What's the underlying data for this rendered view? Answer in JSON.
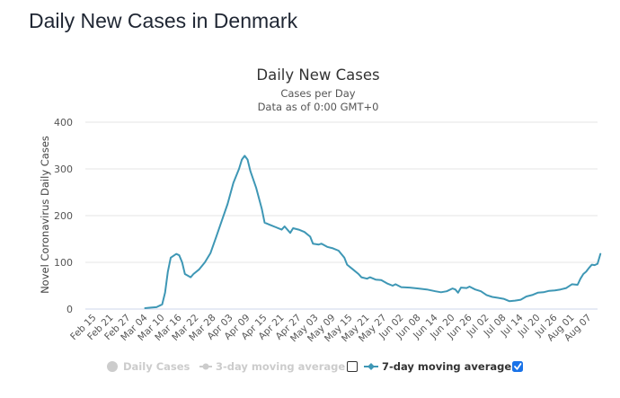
{
  "page": {
    "title": "Daily New Cases in Denmark"
  },
  "chart_data": {
    "type": "line",
    "title": "Daily New Cases",
    "subtitle": "Cases per Day",
    "subtitle2": "Data as of 0:00 GMT+0",
    "ylabel": "Novel Coronavirus Daily Cases",
    "xlabel": "",
    "ylim": [
      0,
      400
    ],
    "yticks": [
      0,
      100,
      200,
      300,
      400
    ],
    "grid": true,
    "legend_position": "bottom",
    "categories": [
      "Feb 15",
      "Feb 21",
      "Feb 27",
      "Mar 04",
      "Mar 10",
      "Mar 16",
      "Mar 22",
      "Mar 28",
      "Apr 03",
      "Apr 09",
      "Apr 15",
      "Apr 21",
      "Apr 27",
      "May 03",
      "May 09",
      "May 15",
      "May 21",
      "May 27",
      "Jun 02",
      "Jun 08",
      "Jun 14",
      "Jun 20",
      "Jun 26",
      "Jul 02",
      "Jul 08",
      "Jul 14",
      "Jul 20",
      "Jul 26",
      "Aug 01",
      "Aug 07"
    ],
    "series": [
      {
        "name": "7-day moving average",
        "color": "#3e97b5",
        "visible": true,
        "points": [
          [
            "Mar 04",
            2
          ],
          [
            "Mar 06",
            3
          ],
          [
            "Mar 08",
            4
          ],
          [
            "Mar 10",
            10
          ],
          [
            "Mar 11",
            35
          ],
          [
            "Mar 12",
            80
          ],
          [
            "Mar 13",
            110
          ],
          [
            "Mar 15",
            118
          ],
          [
            "Mar 16",
            115
          ],
          [
            "Mar 17",
            100
          ],
          [
            "Mar 18",
            75
          ],
          [
            "Mar 20",
            68
          ],
          [
            "Mar 21",
            75
          ],
          [
            "Mar 23",
            85
          ],
          [
            "Mar 25",
            100
          ],
          [
            "Mar 27",
            120
          ],
          [
            "Mar 29",
            155
          ],
          [
            "Mar 31",
            190
          ],
          [
            "Apr 02",
            225
          ],
          [
            "Apr 04",
            270
          ],
          [
            "Apr 06",
            300
          ],
          [
            "Apr 07",
            320
          ],
          [
            "Apr 08",
            328
          ],
          [
            "Apr 09",
            320
          ],
          [
            "Apr 10",
            295
          ],
          [
            "Apr 12",
            260
          ],
          [
            "Apr 14",
            215
          ],
          [
            "Apr 15",
            185
          ],
          [
            "Apr 17",
            180
          ],
          [
            "Apr 19",
            175
          ],
          [
            "Apr 21",
            170
          ],
          [
            "Apr 22",
            177
          ],
          [
            "Apr 24",
            163
          ],
          [
            "Apr 25",
            173
          ],
          [
            "Apr 27",
            170
          ],
          [
            "Apr 29",
            165
          ],
          [
            "May 01",
            155
          ],
          [
            "May 02",
            140
          ],
          [
            "May 04",
            138
          ],
          [
            "May 05",
            140
          ],
          [
            "May 07",
            133
          ],
          [
            "May 09",
            130
          ],
          [
            "May 11",
            125
          ],
          [
            "May 13",
            110
          ],
          [
            "May 14",
            95
          ],
          [
            "May 16",
            85
          ],
          [
            "May 18",
            75
          ],
          [
            "May 19",
            68
          ],
          [
            "May 21",
            65
          ],
          [
            "May 22",
            68
          ],
          [
            "May 24",
            63
          ],
          [
            "May 26",
            62
          ],
          [
            "May 28",
            55
          ],
          [
            "May 30",
            50
          ],
          [
            "May 31",
            53
          ],
          [
            "Jun 02",
            47
          ],
          [
            "Jun 05",
            46
          ],
          [
            "Jun 08",
            44
          ],
          [
            "Jun 11",
            42
          ],
          [
            "Jun 14",
            38
          ],
          [
            "Jun 16",
            36
          ],
          [
            "Jun 18",
            38
          ],
          [
            "Jun 20",
            44
          ],
          [
            "Jun 21",
            42
          ],
          [
            "Jun 22",
            35
          ],
          [
            "Jun 23",
            46
          ],
          [
            "Jun 25",
            45
          ],
          [
            "Jun 26",
            48
          ],
          [
            "Jun 28",
            42
          ],
          [
            "Jun 30",
            38
          ],
          [
            "Jul 02",
            30
          ],
          [
            "Jul 04",
            26
          ],
          [
            "Jul 06",
            24
          ],
          [
            "Jul 08",
            22
          ],
          [
            "Jul 10",
            17
          ],
          [
            "Jul 12",
            18
          ],
          [
            "Jul 14",
            20
          ],
          [
            "Jul 16",
            27
          ],
          [
            "Jul 18",
            30
          ],
          [
            "Jul 20",
            35
          ],
          [
            "Jul 22",
            36
          ],
          [
            "Jul 24",
            39
          ],
          [
            "Jul 26",
            40
          ],
          [
            "Jul 28",
            42
          ],
          [
            "Jul 30",
            45
          ],
          [
            "Aug 01",
            53
          ],
          [
            "Aug 03",
            52
          ],
          [
            "Aug 04",
            65
          ],
          [
            "Aug 05",
            75
          ],
          [
            "Aug 06",
            80
          ],
          [
            "Aug 07",
            88
          ],
          [
            "Aug 08",
            95
          ],
          [
            "Aug 09",
            94
          ],
          [
            "Aug 10",
            97
          ],
          [
            "Aug 11",
            118
          ]
        ]
      }
    ],
    "legend": [
      {
        "label": "Daily Cases",
        "active": false,
        "checkbox": null
      },
      {
        "label": "3-day moving average",
        "active": false,
        "checkbox": false
      },
      {
        "label": "7-day moving average",
        "active": true,
        "checkbox": true
      }
    ],
    "colors": {
      "line": "#3e97b5",
      "grid": "#e6e6e6",
      "inactive": "#cccccc",
      "checkbox": "#1a73e8"
    }
  }
}
